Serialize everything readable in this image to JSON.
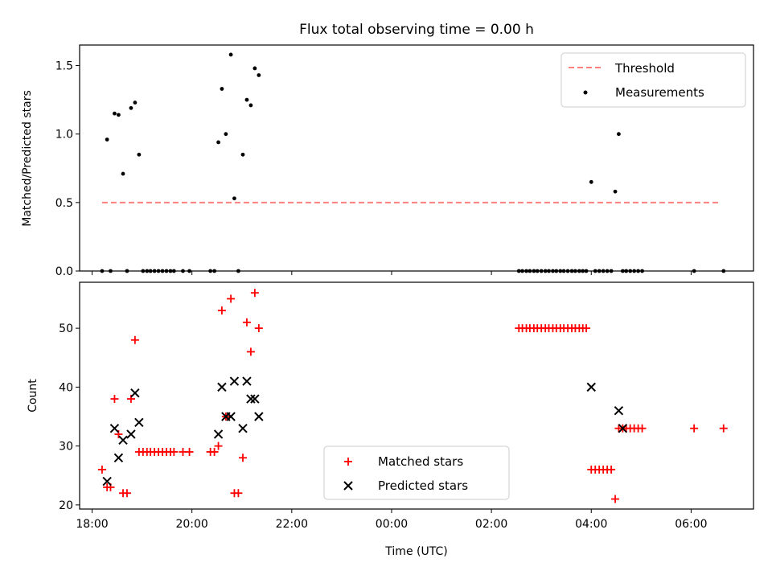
{
  "chart_data": [
    {
      "type": "scatter",
      "title": "Flux total observing time = 0.00 h",
      "xlabel": "",
      "ylabel": "Matched/Predicted stars",
      "xlim": [
        17.75,
        31.25
      ],
      "ylim": [
        0,
        1.65
      ],
      "xticks": [
        {
          "value": 18,
          "label": ""
        },
        {
          "value": 20,
          "label": ""
        },
        {
          "value": 22,
          "label": ""
        },
        {
          "value": 24,
          "label": ""
        },
        {
          "value": 26,
          "label": ""
        },
        {
          "value": 28,
          "label": ""
        },
        {
          "value": 30,
          "label": ""
        }
      ],
      "yticks": [
        {
          "value": 0,
          "label": "0.0"
        },
        {
          "value": 0.5,
          "label": "0.5"
        },
        {
          "value": 1.0,
          "label": "1.0"
        },
        {
          "value": 1.5,
          "label": "1.5"
        }
      ],
      "grid": false,
      "legend_position": "upper-right",
      "series": [
        {
          "name": "Threshold",
          "kind": "line",
          "color": "#ff7f7f",
          "style": "dashed",
          "x": [
            18.2,
            30.6
          ],
          "y": [
            0.5,
            0.5
          ]
        },
        {
          "name": "Measurements",
          "kind": "points",
          "marker": "dot",
          "color": "#000000",
          "x": [
            18.2,
            18.3,
            18.37,
            18.45,
            18.53,
            18.62,
            18.7,
            18.78,
            18.86,
            18.94,
            19.02,
            19.1,
            19.17,
            19.25,
            19.33,
            19.41,
            19.49,
            19.57,
            19.64,
            19.82,
            19.95,
            20.37,
            20.45,
            20.53,
            20.6,
            20.68,
            20.78,
            20.85,
            20.93,
            21.02,
            21.1,
            21.18,
            21.26,
            21.34,
            26.55,
            26.62,
            26.7,
            26.77,
            26.85,
            26.92,
            27.0,
            27.08,
            27.15,
            27.23,
            27.3,
            27.38,
            27.45,
            27.53,
            27.61,
            27.68,
            27.76,
            27.83,
            27.9,
            28.0,
            28.08,
            28.16,
            28.24,
            28.32,
            28.4,
            28.48,
            28.55,
            28.63,
            28.7,
            28.78,
            28.86,
            28.94,
            29.02,
            30.06,
            30.65
          ],
          "y": [
            0,
            0.96,
            0,
            1.15,
            1.14,
            0.71,
            0,
            1.19,
            1.23,
            0.85,
            0,
            0,
            0,
            0,
            0,
            0,
            0,
            0,
            0,
            0,
            0,
            0,
            0,
            0.94,
            1.33,
            1.0,
            1.58,
            0.53,
            0,
            0.85,
            1.25,
            1.21,
            1.48,
            1.43,
            0,
            0,
            0,
            0,
            0,
            0,
            0,
            0,
            0,
            0,
            0,
            0,
            0,
            0,
            0,
            0,
            0,
            0,
            0,
            0.65,
            0,
            0,
            0,
            0,
            0,
            0.58,
            1.0,
            0,
            0,
            0,
            0,
            0,
            0,
            0,
            0
          ]
        }
      ]
    },
    {
      "type": "scatter",
      "title": "",
      "xlabel": "Time (UTC)",
      "ylabel": "Count",
      "xlim": [
        17.75,
        31.25
      ],
      "ylim": [
        19.3,
        57.8
      ],
      "xticks": [
        {
          "value": 18,
          "label": "18:00"
        },
        {
          "value": 20,
          "label": "20:00"
        },
        {
          "value": 22,
          "label": "22:00"
        },
        {
          "value": 24,
          "label": "00:00"
        },
        {
          "value": 26,
          "label": "02:00"
        },
        {
          "value": 28,
          "label": "04:00"
        },
        {
          "value": 30,
          "label": "06:00"
        }
      ],
      "yticks": [
        {
          "value": 20,
          "label": "20"
        },
        {
          "value": 30,
          "label": "30"
        },
        {
          "value": 40,
          "label": "40"
        },
        {
          "value": 50,
          "label": "50"
        }
      ],
      "grid": false,
      "legend_position": "lower-center",
      "series": [
        {
          "name": "Matched stars",
          "kind": "points",
          "marker": "plus",
          "color": "#ff0000",
          "x": [
            18.2,
            18.3,
            18.37,
            18.45,
            18.53,
            18.62,
            18.7,
            18.78,
            18.86,
            18.94,
            19.02,
            19.1,
            19.17,
            19.25,
            19.33,
            19.41,
            19.49,
            19.57,
            19.64,
            19.82,
            19.95,
            20.37,
            20.45,
            20.53,
            20.6,
            20.68,
            20.78,
            20.85,
            20.93,
            21.02,
            21.1,
            21.18,
            21.26,
            21.34,
            26.55,
            26.62,
            26.7,
            26.77,
            26.85,
            26.92,
            27.0,
            27.08,
            27.15,
            27.23,
            27.3,
            27.38,
            27.45,
            27.53,
            27.61,
            27.68,
            27.76,
            27.83,
            27.9,
            28.0,
            28.08,
            28.16,
            28.24,
            28.32,
            28.4,
            28.48,
            28.55,
            28.63,
            28.7,
            28.78,
            28.86,
            28.94,
            29.02,
            30.06,
            30.65
          ],
          "y": [
            26,
            23,
            23,
            38,
            32,
            22,
            22,
            38,
            48,
            29,
            29,
            29,
            29,
            29,
            29,
            29,
            29,
            29,
            29,
            29,
            29,
            29,
            29,
            30,
            53,
            35,
            55,
            22,
            22,
            28,
            51,
            46,
            56,
            50,
            50,
            50,
            50,
            50,
            50,
            50,
            50,
            50,
            50,
            50,
            50,
            50,
            50,
            50,
            50,
            50,
            50,
            50,
            50,
            26,
            26,
            26,
            26,
            26,
            26,
            21,
            33,
            33,
            33,
            33,
            33,
            33,
            33,
            33,
            33
          ]
        },
        {
          "name": "Predicted stars",
          "kind": "points",
          "marker": "x",
          "color": "#000000",
          "x": [
            18.3,
            18.45,
            18.53,
            18.62,
            18.78,
            18.86,
            18.94,
            20.53,
            20.6,
            20.68,
            20.78,
            20.85,
            21.02,
            21.1,
            21.18,
            21.26,
            21.34,
            28.0,
            28.55,
            28.63
          ],
          "y": [
            24,
            33,
            28,
            31,
            32,
            39,
            34,
            32,
            40,
            35,
            35,
            41,
            33,
            41,
            38,
            38,
            35,
            40,
            36,
            33
          ]
        }
      ]
    }
  ]
}
